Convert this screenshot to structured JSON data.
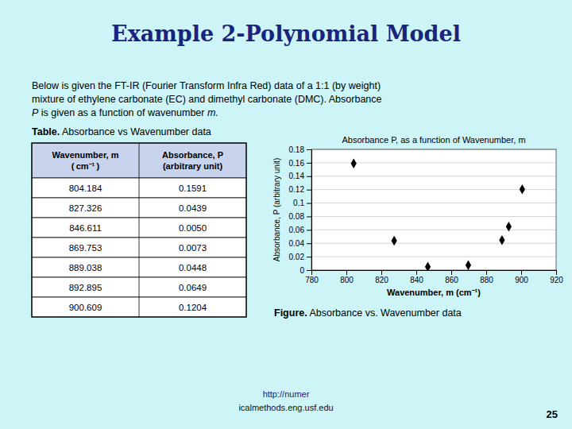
{
  "chart_data": {
    "type": "scatter",
    "title": "Absorbance P, as a function of Wavenumber, m",
    "x_label": "Wavenumber, m (cm⁻¹)",
    "y_label": "Absorbance, P (arbitrary unit)",
    "x": [
      804.184,
      827.326,
      846.611,
      869.753,
      889.038,
      892.895,
      900.609
    ],
    "values": [
      0.1591,
      0.0439,
      0.005,
      0.0073,
      0.0448,
      0.0649,
      0.1204
    ],
    "color": "#000000",
    "marker": "diamond",
    "xlim": [
      780,
      920
    ],
    "ylim": [
      0,
      0.18
    ],
    "xticks": [
      780,
      800,
      820,
      840,
      860,
      880,
      900,
      920
    ],
    "yticks": [
      0,
      0.02,
      0.04,
      0.06,
      0.08,
      0.1,
      0.12,
      0.14,
      0.16,
      0.18
    ],
    "grid": true
  },
  "page": {
    "title": "Example 2-Polynomial Model",
    "background_color": "#cdf5f8",
    "title_color": "#1a237e",
    "body_line1": "Below is given the FT-IR (Fourier Transform Infra Red) data of a 1:1 (by weight)",
    "body_line2": "mixture of ethylene carbonate (EC) and dimethyl carbonate (DMC). Absorbance",
    "body_line3": [
      "P",
      " is given as a function of wavenumber",
      " m."
    ],
    "table_title_bold": "Table.",
    "table_title_rest": " Absorbance vs Wavenumber data",
    "table": {
      "columns": [
        [
          "Wavenumber, m",
          "( cm⁻¹ )"
        ],
        [
          "Absorbance, P",
          "(arbitrary unit)"
        ]
      ],
      "header_color": "#c8d4ee",
      "rows": [
        [
          804.184,
          0.1591
        ],
        [
          827.326,
          0.0439
        ],
        [
          846.611,
          {
            "value": 0.005,
            "label": "0.0050"
          }
        ],
        [
          869.753,
          0.0073
        ],
        [
          889.038,
          0.0448
        ],
        [
          892.895,
          0.0649
        ],
        [
          900.609,
          0.1204
        ]
      ]
    },
    "figure_caption_bold": "Figure.",
    "figure_caption_rest": " Absorbance vs. Wavenumber data",
    "footer_url": "http://numer",
    "footer_url_color": "#1a237e",
    "footer_left": "icalmethods.eng.usf.edu",
    "footer_page": "25"
  }
}
